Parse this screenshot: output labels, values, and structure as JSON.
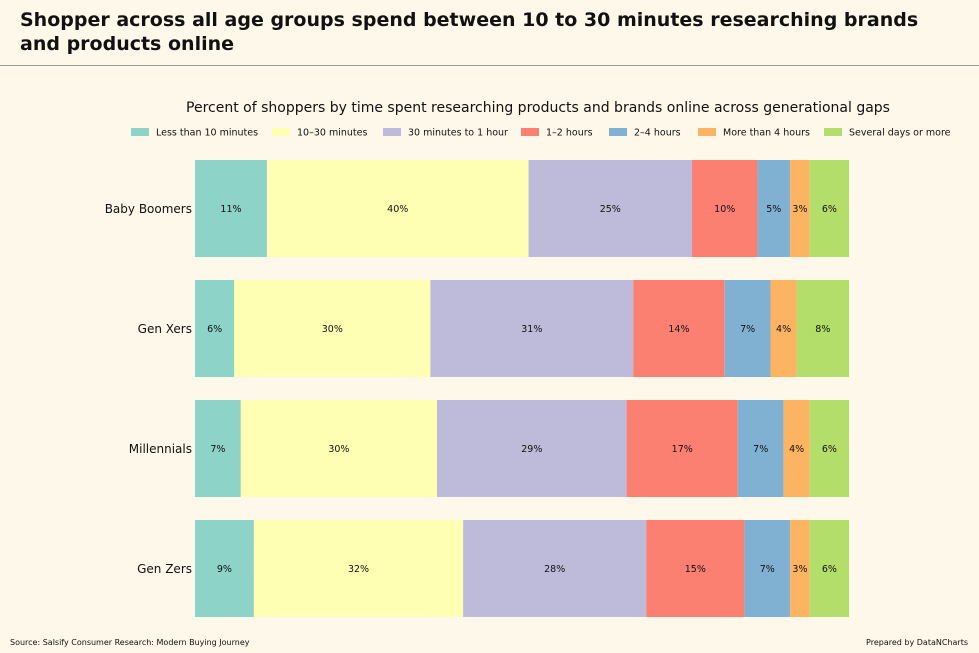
{
  "page": {
    "title": "Shopper across all age groups spend between 10 to 30 minutes researching brands and products online",
    "source": "Source: Salsify Consumer Research: Modern Buying Journey",
    "credit": "Prepared by DataNCharts"
  },
  "chart_data": {
    "type": "bar",
    "orientation": "horizontal",
    "stacked": true,
    "title": "Percent of shoppers by time spent researching products and brands online across generational gaps",
    "xlabel": "",
    "ylabel": "",
    "legend_position": "top",
    "grid": false,
    "categories": [
      "Baby Boomers",
      "Gen Xers",
      "Millennials",
      "Gen Zers"
    ],
    "series": [
      {
        "name": "Less than 10 minutes",
        "color": "#8dd3c7",
        "values": [
          11,
          6,
          7,
          9
        ]
      },
      {
        "name": "10–30 minutes",
        "color": "#ffffb3",
        "values": [
          40,
          30,
          30,
          32
        ]
      },
      {
        "name": "30 minutes to 1 hour",
        "color": "#bebada",
        "values": [
          25,
          31,
          29,
          28
        ]
      },
      {
        "name": "1–2 hours",
        "color": "#fb8072",
        "values": [
          10,
          14,
          17,
          15
        ]
      },
      {
        "name": "2–4 hours",
        "color": "#80b1d3",
        "values": [
          5,
          7,
          7,
          7
        ]
      },
      {
        "name": "More than 4 hours",
        "color": "#fdb462",
        "values": [
          3,
          4,
          4,
          3
        ]
      },
      {
        "name": "Several days or more",
        "color": "#b3de69",
        "values": [
          6,
          8,
          6,
          6
        ]
      }
    ],
    "value_suffix": "%"
  }
}
